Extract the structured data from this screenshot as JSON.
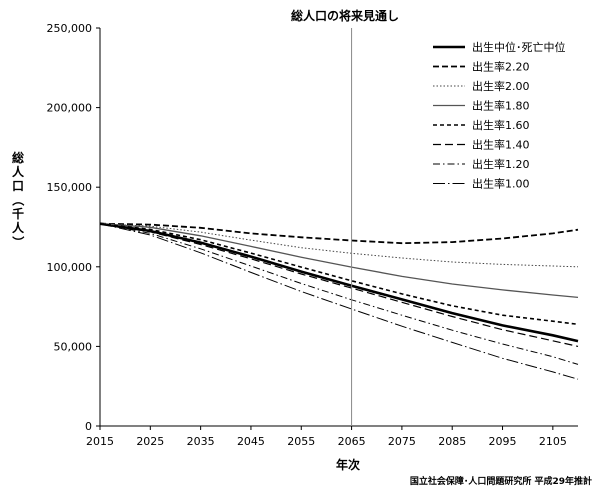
{
  "chart_data": {
    "type": "line",
    "title": "総人口の将来見通し",
    "xlabel": "年次",
    "ylabel": "総人口（千人）",
    "source": "国立社会保障･人口問題研究所 平成29年推計",
    "xlim": [
      2015,
      2110
    ],
    "ylim": [
      0,
      250000
    ],
    "x_ticks": [
      2015,
      2025,
      2035,
      2045,
      2055,
      2065,
      2075,
      2085,
      2095,
      2105
    ],
    "x_tick_labels": [
      "2015",
      "2025",
      "2035",
      "2045",
      "2055",
      "2065",
      "2075",
      "2085",
      "2095",
      "2105"
    ],
    "y_ticks": [
      0,
      50000,
      100000,
      150000,
      200000,
      250000
    ],
    "y_tick_labels": [
      "0",
      "50,000",
      "100,000",
      "150,000",
      "200,000",
      "250,000"
    ],
    "reference_line_x": 2065,
    "grid": false,
    "legend_position": "top-right",
    "x": [
      2015,
      2025,
      2035,
      2045,
      2055,
      2065,
      2075,
      2085,
      2095,
      2105,
      2110
    ],
    "series": [
      {
        "name": "出生中位･死亡中位",
        "style": "solid-bold",
        "values": [
          127100,
          122500,
          115200,
          106400,
          97000,
          88100,
          79500,
          70900,
          63200,
          57000,
          53300
        ]
      },
      {
        "name": "出生率2.20",
        "style": "dashed-bold",
        "values": [
          127100,
          126500,
          124500,
          121000,
          118500,
          116500,
          114800,
          115500,
          117800,
          121000,
          123300
        ]
      },
      {
        "name": "出生率2.00",
        "style": "dotted",
        "values": [
          127100,
          125500,
          121800,
          116800,
          112000,
          108500,
          105500,
          103000,
          101500,
          100500,
          100000
        ]
      },
      {
        "name": "出生率1.80",
        "style": "solid-gray",
        "values": [
          127100,
          124800,
          119500,
          112800,
          106000,
          99800,
          94000,
          89200,
          85500,
          82300,
          80800
        ]
      },
      {
        "name": "出生率1.60",
        "style": "dashed-medium",
        "values": [
          127100,
          123500,
          117000,
          108600,
          99800,
          91200,
          83000,
          75500,
          69600,
          65800,
          63900
        ]
      },
      {
        "name": "出生率1.40",
        "style": "dashed-long",
        "values": [
          127100,
          122000,
          114000,
          105000,
          95500,
          86600,
          77700,
          68800,
          60500,
          53500,
          50000
        ]
      },
      {
        "name": "出生率1.20",
        "style": "dash-dot",
        "values": [
          127100,
          121000,
          111300,
          100500,
          89500,
          79300,
          69600,
          60200,
          51500,
          43500,
          38700
        ]
      },
      {
        "name": "出生率1.00",
        "style": "long-dash-dot",
        "values": [
          127100,
          120000,
          108800,
          96500,
          84500,
          73500,
          62700,
          52500,
          42500,
          34000,
          29400
        ]
      }
    ]
  }
}
